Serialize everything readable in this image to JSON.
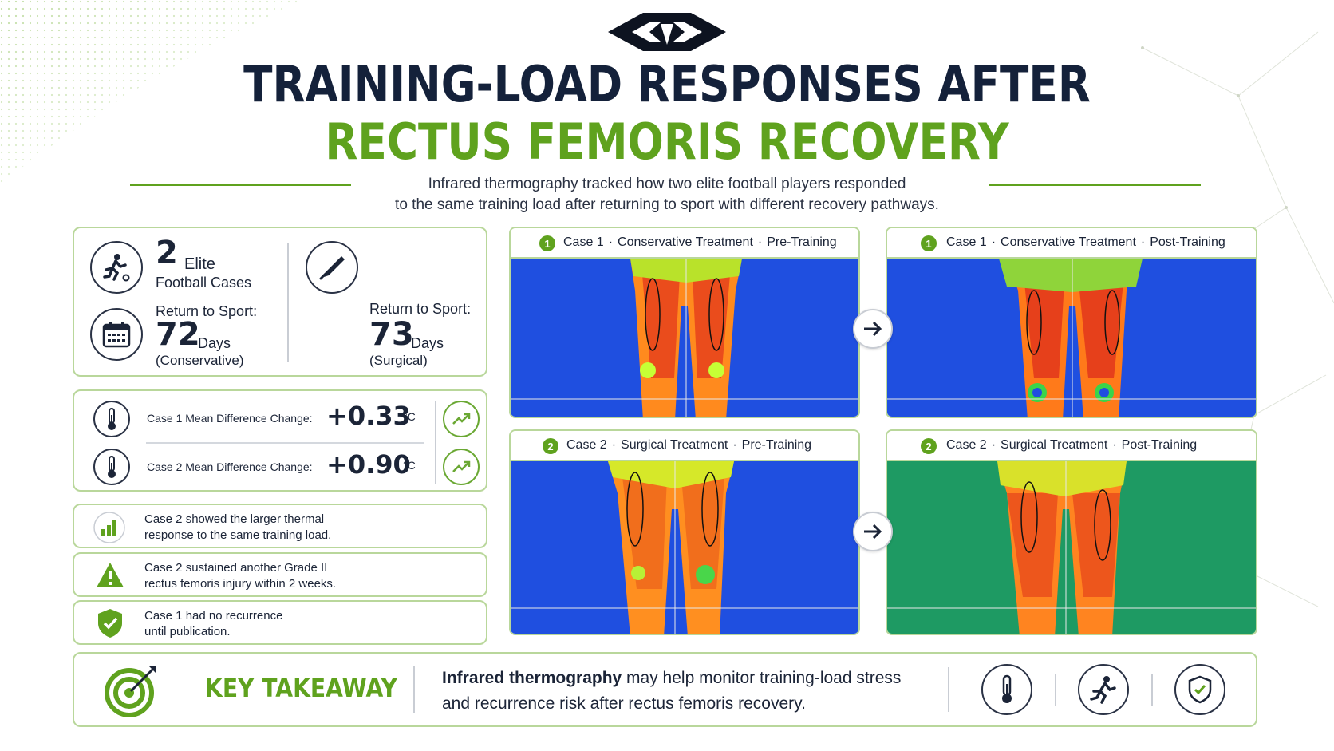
{
  "header": {
    "title_line1": "TRAINING-LOAD RESPONSES AFTER",
    "title_line2": "RECTUS FEMORIS RECOVERY",
    "subtitle_line1": "Infrared thermography tracked how two elite football players responded",
    "subtitle_line2": "to the same training load after returning to sport with different recovery pathways."
  },
  "summary": {
    "cases_number": "2",
    "cases_label1": "Elite",
    "cases_label2": "Football Cases",
    "rts_label": "Return to Sport:",
    "case1_days": "72",
    "case1_days_unit": "Days",
    "case1_treatment": "(Conservative)",
    "case2_rts_label": "Return to Sport:",
    "case2_days": "73",
    "case2_days_unit": "Days",
    "case2_treatment": "(Surgical)"
  },
  "metrics": [
    {
      "label": "Case 1 Mean Difference Change:",
      "value": "+0.33",
      "unit": "°C"
    },
    {
      "label": "Case 2 Mean Difference Change:",
      "value": "+0.90",
      "unit": "°C"
    }
  ],
  "findings": [
    {
      "line1": "Case 2 showed the larger thermal",
      "line2": "response to the same training load."
    },
    {
      "line1": "Case 2 sustained another Grade II",
      "line2": "rectus femoris injury within 2 weeks."
    },
    {
      "line1": "Case 1 had no recurrence",
      "line2": "until publication."
    }
  ],
  "panels": [
    {
      "badge": "1",
      "case": "Case 1",
      "treatment": "Conservative Treatment",
      "phase": "Pre-Training"
    },
    {
      "badge": "1",
      "case": "Case 1",
      "treatment": "Conservative Treatment",
      "phase": "Post-Training"
    },
    {
      "badge": "2",
      "case": "Case 2",
      "treatment": "Surgical Treatment",
      "phase": "Pre-Training"
    },
    {
      "badge": "2",
      "case": "Case 2",
      "treatment": "Surgical Treatment",
      "phase": "Post-Training"
    }
  ],
  "separator": "·",
  "takeaway": {
    "label": "KEY TAKEAWAY",
    "bold_part": "Infrared thermography",
    "rest_line1": " may help monitor training-load stress",
    "line2": "and recurrence risk after rectus femoris recovery."
  },
  "colors": {
    "brand_green": "#5fa21e",
    "navy": "#14213a",
    "thermo_blue": "#1f4fe0",
    "thermo_teal": "#1e9a63"
  },
  "icons": [
    "soccer-player-icon",
    "calendar-icon",
    "scalpel-icon",
    "thermometer-icon",
    "trend-up-icon",
    "bar-chart-icon",
    "warning-icon",
    "shield-check-icon",
    "target-icon",
    "running-icon",
    "arrow-right-icon"
  ]
}
